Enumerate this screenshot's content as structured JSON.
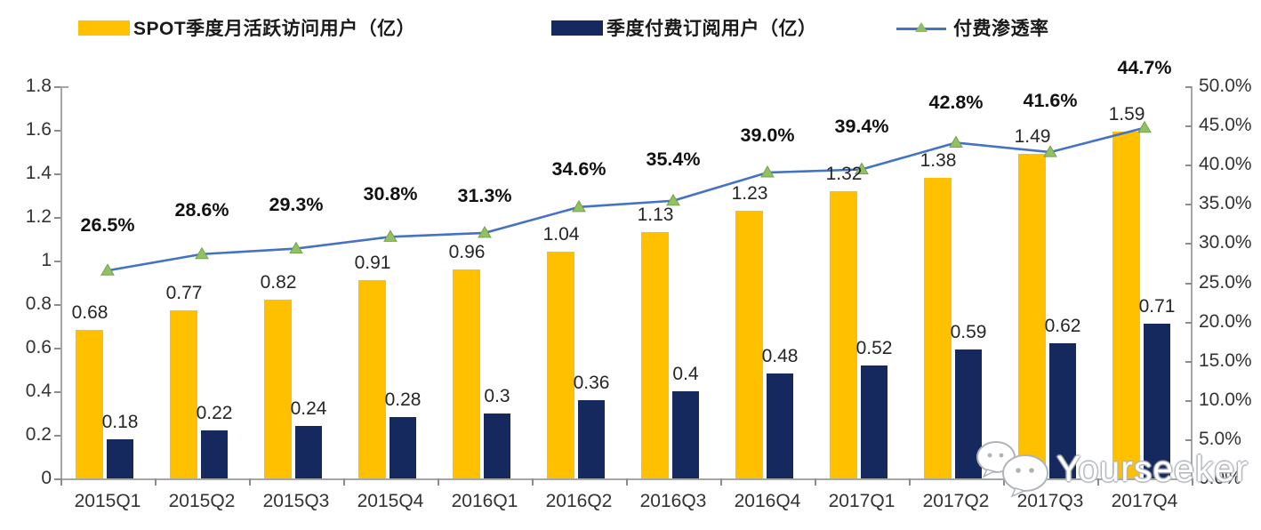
{
  "legend": {
    "items": [
      {
        "label": "SPOT季度月活跃访问用户（亿）",
        "type": "swatch",
        "color": "#FFC000"
      },
      {
        "label": "季度付费订阅用户（亿）",
        "type": "swatch",
        "color": "#16295F"
      },
      {
        "label": "付费渗透率",
        "type": "line",
        "color": "#4472C4",
        "marker_color": "#8FBE63"
      }
    ]
  },
  "watermark": {
    "text": "Yourseeker",
    "icon": "wechat-icon"
  },
  "colors": {
    "mau_bar": "#FFC000",
    "sub_bar": "#16295F",
    "line": "#4472C4",
    "marker_fill": "#92C162",
    "marker_stroke": "#76A24C",
    "axis": "#a6a6a6"
  },
  "chart_data": {
    "type": "bar",
    "subtype": "grouped-bars-with-line",
    "categories": [
      "2015Q1",
      "2015Q2",
      "2015Q3",
      "2015Q4",
      "2016Q1",
      "2016Q2",
      "2016Q3",
      "2016Q4",
      "2017Q1",
      "2017Q2",
      "2017Q3",
      "2017Q4"
    ],
    "series": [
      {
        "name": "SPOT季度月活跃访问用户（亿）",
        "type": "bar",
        "axis": "left",
        "color": "#FFC000",
        "values": [
          0.68,
          0.77,
          0.82,
          0.91,
          0.96,
          1.04,
          1.13,
          1.23,
          1.32,
          1.38,
          1.49,
          1.59
        ],
        "labels": [
          "0.68",
          "0.77",
          "0.82",
          "0.91",
          "0.96",
          "1.04",
          "1.13",
          "1.23",
          "1.32",
          "1.38",
          "1.49",
          "1.59"
        ]
      },
      {
        "name": "季度付费订阅用户（亿）",
        "type": "bar",
        "axis": "left",
        "color": "#16295F",
        "values": [
          0.18,
          0.22,
          0.24,
          0.28,
          0.3,
          0.36,
          0.4,
          0.48,
          0.52,
          0.59,
          0.62,
          0.71
        ],
        "labels": [
          "0.18",
          "0.22",
          "0.24",
          "0.28",
          "0.3",
          "0.36",
          "0.4",
          "0.48",
          "0.52",
          "0.59",
          "0.62",
          "0.71"
        ]
      },
      {
        "name": "付费渗透率",
        "type": "line",
        "axis": "right",
        "color": "#4472C4",
        "marker": "triangle",
        "marker_color": "#92C162",
        "values": [
          26.5,
          28.6,
          29.3,
          30.8,
          31.3,
          34.6,
          35.4,
          39.0,
          39.4,
          42.8,
          41.6,
          44.7
        ],
        "labels": [
          "26.5%",
          "28.6%",
          "29.3%",
          "30.8%",
          "31.3%",
          "34.6%",
          "35.4%",
          "39.0%",
          "39.4%",
          "42.8%",
          "41.6%",
          "44.7%"
        ]
      }
    ],
    "left_axis": {
      "min": 0,
      "max": 1.8,
      "step": 0.2,
      "ticks": [
        "0",
        "0.2",
        "0.4",
        "0.6",
        "0.8",
        "1",
        "1.2",
        "1.4",
        "1.6",
        "1.8"
      ]
    },
    "right_axis": {
      "min": 0,
      "max": 50,
      "step": 5,
      "ticks": [
        "0.0%",
        "5.0%",
        "10.0%",
        "15.0%",
        "20.0%",
        "25.0%",
        "30.0%",
        "35.0%",
        "40.0%",
        "45.0%",
        "50.0%"
      ]
    },
    "grid": false,
    "legend_position": "top"
  }
}
